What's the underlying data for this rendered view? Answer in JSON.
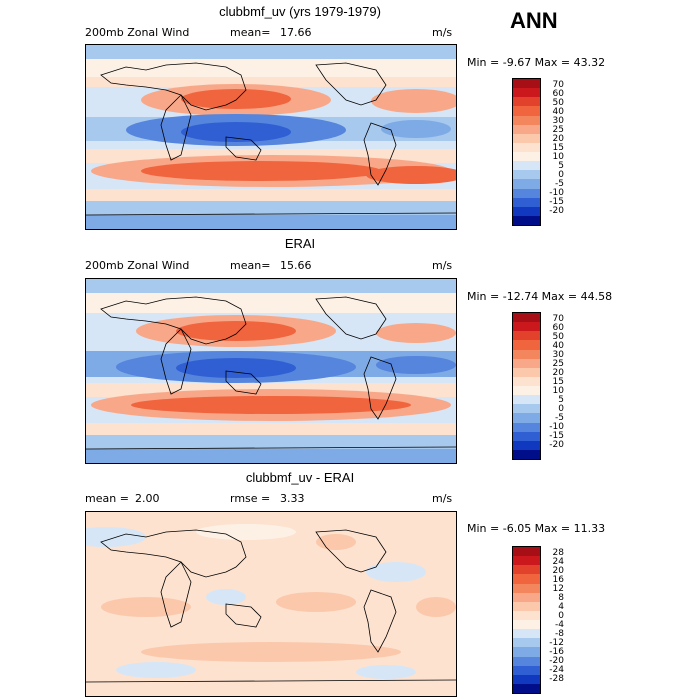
{
  "season": "ANN",
  "panels": [
    {
      "title": "clubbmf_uv (yrs 1979-1979)",
      "left_label": "200mb Zonal Wind",
      "stat_label": "mean=",
      "stat_value": "17.66",
      "units": "m/s",
      "minmax": "Min =  -9.67 Max =  43.32",
      "cbar_labels": [
        "70",
        "60",
        "50",
        "40",
        "30",
        "25",
        "20",
        "15",
        "10",
        "5",
        "0",
        "-5",
        "-10",
        "-15",
        "-20"
      ],
      "cbar_colors": [
        "#a50f15",
        "#cb181d",
        "#e2412b",
        "#f0643e",
        "#f4865e",
        "#f8a888",
        "#fbc8ab",
        "#fde2cf",
        "#fdf1e6",
        "#d6e6f7",
        "#a8c9ee",
        "#7eaae5",
        "#5585dc",
        "#2f5fd3",
        "#1139c0",
        "#000e8a"
      ]
    },
    {
      "title": "ERAI",
      "left_label": "200mb Zonal Wind",
      "stat_label": "mean=",
      "stat_value": "15.66",
      "units": "m/s",
      "minmax": "Min = -12.74 Max =  44.58",
      "cbar_labels": [
        "70",
        "60",
        "50",
        "40",
        "30",
        "25",
        "20",
        "15",
        "10",
        "5",
        "0",
        "-5",
        "-10",
        "-15",
        "-20"
      ],
      "cbar_colors": [
        "#a50f15",
        "#cb181d",
        "#e2412b",
        "#f0643e",
        "#f4865e",
        "#f8a888",
        "#fbc8ab",
        "#fde2cf",
        "#fdf1e6",
        "#d6e6f7",
        "#a8c9ee",
        "#7eaae5",
        "#5585dc",
        "#2f5fd3",
        "#1139c0",
        "#000e8a"
      ]
    },
    {
      "title": "clubbmf_uv - ERAI",
      "left_label": "mean =",
      "left_value": "2.00",
      "stat_label": "rmse =",
      "stat_value": "3.33",
      "units": "m/s",
      "minmax": "Min =  -6.05 Max =  11.33",
      "cbar_labels": [
        "28",
        "24",
        "20",
        "16",
        "12",
        "8",
        "4",
        "0",
        "-4",
        "-8",
        "-12",
        "-16",
        "-20",
        "-24",
        "-28"
      ],
      "cbar_colors": [
        "#a50f15",
        "#cb181d",
        "#e2412b",
        "#f0643e",
        "#f4865e",
        "#f8a888",
        "#fbc8ab",
        "#fde2cf",
        "#fdf1e6",
        "#d6e6f7",
        "#a8c9ee",
        "#7eaae5",
        "#5585dc",
        "#2f5fd3",
        "#1139c0",
        "#000e8a"
      ]
    }
  ]
}
